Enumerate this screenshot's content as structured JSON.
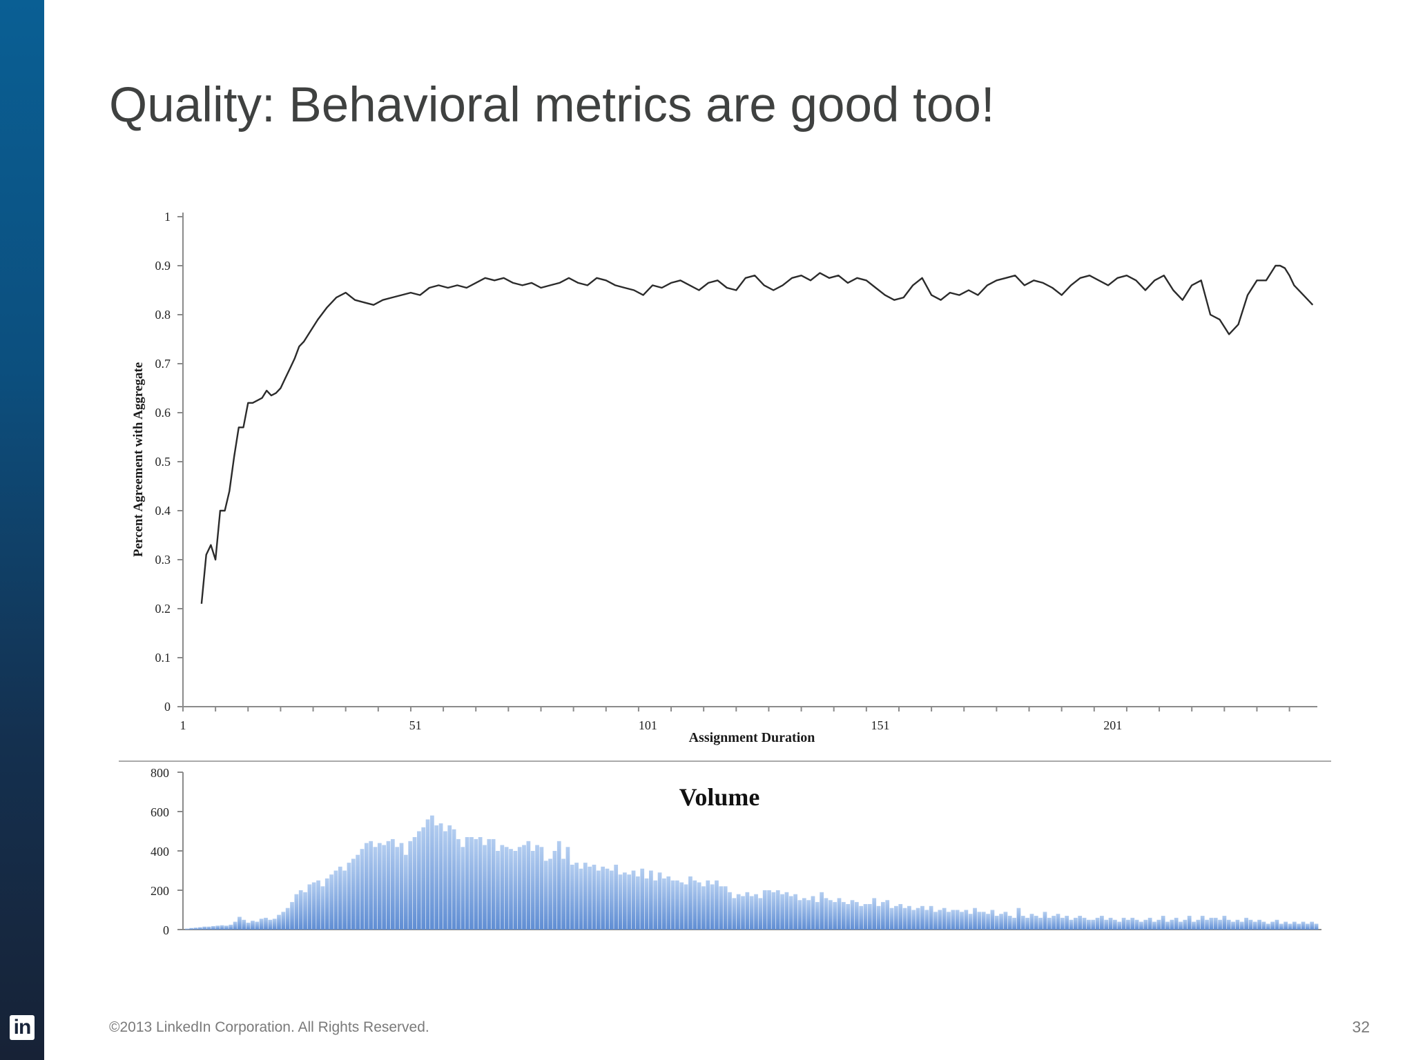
{
  "slide": {
    "title": "Quality: Behavioral metrics are good too!",
    "footer": "©2013 LinkedIn Corporation. All Rights Reserved.",
    "page_number": "32",
    "logo_text": "in",
    "sidebar_color": "#0a5f94"
  },
  "chart_data": [
    {
      "type": "line",
      "title": "",
      "xlabel": "Assignment Duration",
      "ylabel": "Percent Agreement with Aggregate",
      "xlim": [
        1,
        245
      ],
      "ylim": [
        0,
        1
      ],
      "x_ticks": [
        "1",
        "51",
        "101",
        "151",
        "201"
      ],
      "x_tick_values": [
        1,
        51,
        101,
        151,
        201
      ],
      "y_ticks": [
        "0",
        "0.1",
        "0.2",
        "0.3",
        "0.4",
        "0.5",
        "0.6",
        "0.7",
        "0.8",
        "0.9",
        "1"
      ],
      "grid": false,
      "line_color": "#2b2b2b",
      "series": [
        {
          "x": [
            5,
            6,
            7,
            8,
            9,
            10,
            11,
            12,
            13,
            14,
            15,
            16,
            17,
            18,
            19,
            20,
            21,
            22,
            23,
            24,
            25,
            26,
            27,
            28,
            30,
            32,
            34,
            36,
            38,
            40,
            42,
            44,
            46,
            48,
            50,
            52,
            54,
            56,
            58,
            60,
            62,
            64,
            66,
            68,
            70,
            72,
            74,
            76,
            78,
            80,
            82,
            84,
            86,
            88,
            90,
            92,
            94,
            96,
            98,
            100,
            102,
            104,
            106,
            108,
            110,
            112,
            114,
            116,
            118,
            120,
            122,
            124,
            126,
            128,
            130,
            132,
            134,
            136,
            138,
            140,
            142,
            144,
            146,
            148,
            150,
            152,
            154,
            156,
            158,
            160,
            162,
            164,
            166,
            168,
            170,
            172,
            174,
            176,
            178,
            180,
            182,
            184,
            186,
            188,
            190,
            192,
            194,
            196,
            198,
            200,
            202,
            204,
            206,
            208,
            210,
            212,
            214,
            216,
            218,
            220,
            222,
            224,
            226,
            228,
            230,
            232,
            234,
            235,
            236,
            237,
            238,
            239,
            240,
            242,
            244
          ],
          "y": [
            0.21,
            0.31,
            0.33,
            0.3,
            0.4,
            0.4,
            0.44,
            0.51,
            0.57,
            0.57,
            0.62,
            0.62,
            0.625,
            0.63,
            0.645,
            0.635,
            0.64,
            0.65,
            0.67,
            0.69,
            0.71,
            0.735,
            0.745,
            0.76,
            0.79,
            0.815,
            0.835,
            0.845,
            0.83,
            0.825,
            0.82,
            0.83,
            0.835,
            0.84,
            0.845,
            0.84,
            0.855,
            0.86,
            0.855,
            0.86,
            0.855,
            0.865,
            0.875,
            0.87,
            0.875,
            0.865,
            0.86,
            0.865,
            0.855,
            0.86,
            0.865,
            0.875,
            0.865,
            0.86,
            0.875,
            0.87,
            0.86,
            0.855,
            0.85,
            0.84,
            0.86,
            0.855,
            0.865,
            0.87,
            0.86,
            0.85,
            0.865,
            0.87,
            0.855,
            0.85,
            0.875,
            0.88,
            0.86,
            0.85,
            0.86,
            0.875,
            0.88,
            0.87,
            0.885,
            0.875,
            0.88,
            0.865,
            0.875,
            0.87,
            0.855,
            0.84,
            0.83,
            0.835,
            0.86,
            0.875,
            0.84,
            0.83,
            0.845,
            0.84,
            0.85,
            0.84,
            0.86,
            0.87,
            0.875,
            0.88,
            0.86,
            0.87,
            0.865,
            0.855,
            0.84,
            0.86,
            0.875,
            0.88,
            0.87,
            0.86,
            0.875,
            0.88,
            0.87,
            0.85,
            0.87,
            0.88,
            0.85,
            0.83,
            0.86,
            0.87,
            0.8,
            0.79,
            0.76,
            0.78,
            0.84,
            0.87,
            0.87,
            0.885,
            0.9,
            0.9,
            0.895,
            0.88,
            0.86,
            0.84,
            0.82
          ]
        }
      ]
    },
    {
      "type": "bar",
      "title": "Volume",
      "xlim": [
        1,
        245
      ],
      "ylim": [
        0,
        800
      ],
      "y_ticks": [
        "0",
        "200",
        "400",
        "600",
        "800"
      ],
      "grid": false,
      "bar_color": "#6c96d6",
      "series": [
        {
          "name": "Volume",
          "values": [
            5,
            8,
            10,
            12,
            15,
            15,
            18,
            20,
            22,
            20,
            25,
            40,
            65,
            50,
            35,
            45,
            40,
            55,
            60,
            50,
            55,
            75,
            90,
            110,
            140,
            180,
            200,
            190,
            230,
            240,
            250,
            220,
            260,
            280,
            300,
            320,
            300,
            340,
            360,
            380,
            410,
            440,
            450,
            420,
            440,
            430,
            450,
            460,
            420,
            440,
            380,
            450,
            470,
            500,
            520,
            560,
            580,
            530,
            540,
            500,
            530,
            510,
            460,
            420,
            470,
            470,
            460,
            470,
            430,
            460,
            460,
            400,
            430,
            420,
            410,
            400,
            420,
            430,
            450,
            400,
            430,
            420,
            350,
            360,
            400,
            450,
            360,
            420,
            330,
            340,
            310,
            340,
            320,
            330,
            300,
            320,
            310,
            300,
            330,
            280,
            290,
            280,
            300,
            270,
            310,
            260,
            300,
            250,
            290,
            260,
            270,
            250,
            250,
            240,
            230,
            270,
            250,
            240,
            220,
            250,
            230,
            250,
            220,
            220,
            190,
            160,
            180,
            170,
            190,
            170,
            180,
            160,
            200,
            200,
            190,
            200,
            180,
            190,
            170,
            180,
            150,
            160,
            150,
            170,
            140,
            190,
            160,
            150,
            140,
            160,
            140,
            130,
            150,
            140,
            120,
            130,
            130,
            160,
            120,
            140,
            150,
            110,
            120,
            130,
            110,
            120,
            100,
            110,
            120,
            100,
            120,
            90,
            100,
            110,
            90,
            100,
            100,
            90,
            100,
            80,
            110,
            90,
            90,
            80,
            100,
            70,
            80,
            90,
            70,
            60,
            110,
            70,
            60,
            80,
            70,
            60,
            90,
            60,
            70,
            80,
            60,
            70,
            50,
            60,
            70,
            60,
            50,
            50,
            60,
            70,
            50,
            60,
            50,
            40,
            60,
            50,
            60,
            50,
            40,
            50,
            60,
            40,
            50,
            70,
            40,
            50,
            60,
            40,
            50,
            70,
            40,
            50,
            70,
            50,
            60,
            60,
            50,
            70,
            50,
            40,
            50,
            40,
            60,
            50,
            40,
            50,
            40,
            30,
            40,
            50,
            30,
            40,
            30,
            40,
            30,
            40,
            30,
            40,
            30
          ]
        }
      ]
    }
  ]
}
